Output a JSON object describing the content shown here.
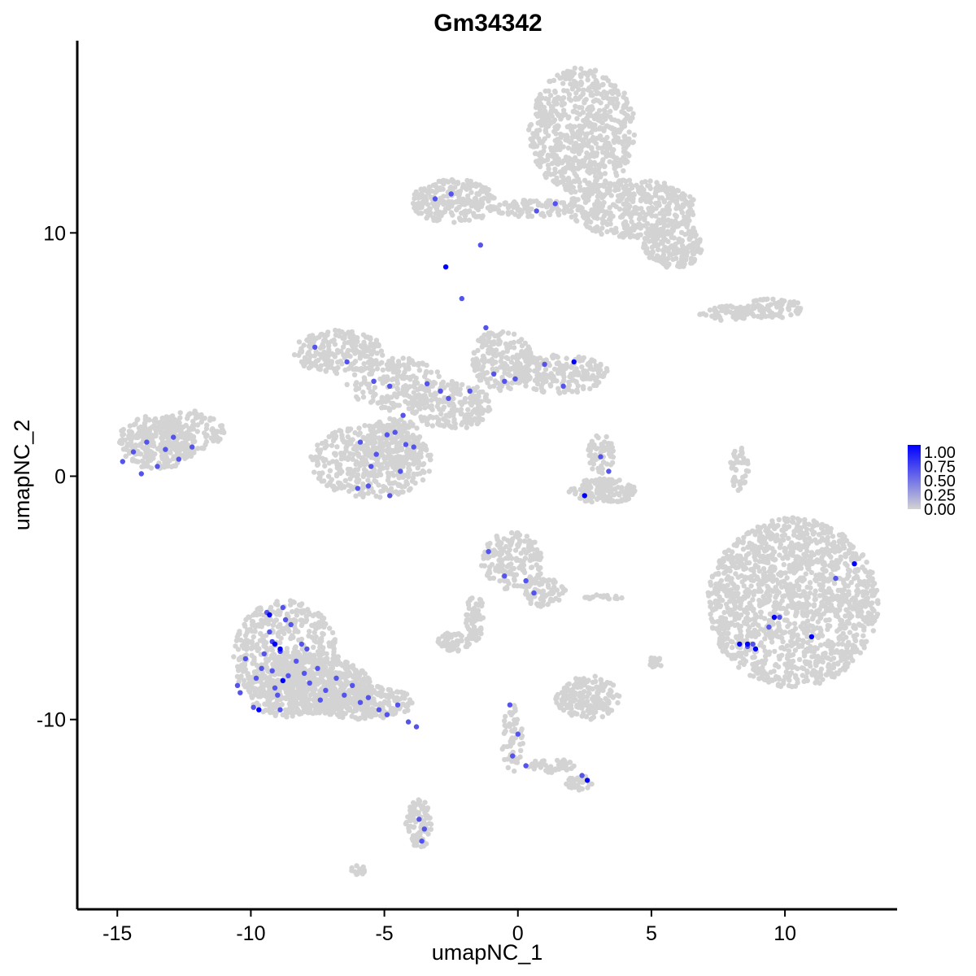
{
  "chart_data": {
    "type": "scatter",
    "title": "Gm34342",
    "xlabel": "umapNC_1",
    "ylabel": "umapNC_2",
    "xlim": [
      -16.5,
      14.2
    ],
    "ylim": [
      -17.8,
      17.9
    ],
    "xticks": [
      -15,
      -10,
      -5,
      0,
      5,
      10
    ],
    "xtick_labels": [
      "-15",
      "-10",
      "-5",
      "0",
      "5",
      "10"
    ],
    "yticks": [
      -10,
      0,
      10
    ],
    "ytick_labels": [
      "-10",
      "0",
      "10"
    ],
    "grid": false,
    "legend": {
      "placement": "right",
      "type": "colorbar",
      "low_color": "#d3d3d3",
      "high_color": "#0000ff",
      "range": [
        0,
        1
      ],
      "labels": [
        "1.00",
        "0.75",
        "0.50",
        "0.25",
        "0.00"
      ]
    },
    "background_clusters": [
      {
        "cx": 2.4,
        "cy": 14.2,
        "rx": 2.0,
        "ry": 2.6,
        "n": 700
      },
      {
        "cx": 4.3,
        "cy": 11.0,
        "rx": 2.4,
        "ry": 1.2,
        "n": 420
      },
      {
        "cx": 5.8,
        "cy": 9.5,
        "rx": 1.1,
        "ry": 1.0,
        "n": 200
      },
      {
        "cx": -2.4,
        "cy": 11.3,
        "rx": 1.6,
        "ry": 0.9,
        "n": 220
      },
      {
        "cx": 0.6,
        "cy": 11.0,
        "rx": 1.6,
        "ry": 0.35,
        "n": 90
      },
      {
        "cx": 9.5,
        "cy": 6.9,
        "rx": 1.2,
        "ry": 0.4,
        "n": 90
      },
      {
        "cx": 7.8,
        "cy": 6.7,
        "rx": 1.0,
        "ry": 0.3,
        "n": 50
      },
      {
        "cx": -6.7,
        "cy": 5.1,
        "rx": 1.7,
        "ry": 0.9,
        "n": 220
      },
      {
        "cx": -4.6,
        "cy": 3.8,
        "rx": 1.8,
        "ry": 1.1,
        "n": 200
      },
      {
        "cx": -2.5,
        "cy": 2.9,
        "rx": 1.5,
        "ry": 1.0,
        "n": 220
      },
      {
        "cx": -0.6,
        "cy": 4.8,
        "rx": 1.1,
        "ry": 1.3,
        "n": 180
      },
      {
        "cx": 1.6,
        "cy": 4.2,
        "rx": 1.8,
        "ry": 0.8,
        "n": 200
      },
      {
        "cx": -4.6,
        "cy": 1.3,
        "rx": 1.1,
        "ry": 1.1,
        "n": 150
      },
      {
        "cx": -5.5,
        "cy": 0.6,
        "rx": 2.3,
        "ry": 1.5,
        "n": 420
      },
      {
        "cx": -13.5,
        "cy": 1.4,
        "rx": 1.5,
        "ry": 1.1,
        "n": 300
      },
      {
        "cx": -12.2,
        "cy": 1.8,
        "rx": 1.2,
        "ry": 0.9,
        "n": 120
      },
      {
        "cx": 3.2,
        "cy": -0.6,
        "rx": 1.3,
        "ry": 0.5,
        "n": 140
      },
      {
        "cx": 3.1,
        "cy": 0.9,
        "rx": 0.5,
        "ry": 0.8,
        "n": 60
      },
      {
        "cx": 8.3,
        "cy": 0.3,
        "rx": 0.35,
        "ry": 0.9,
        "n": 40
      },
      {
        "cx": 10.3,
        "cy": -5.2,
        "rx": 3.2,
        "ry": 3.5,
        "n": 1500
      },
      {
        "cx": -0.2,
        "cy": -3.5,
        "rx": 1.2,
        "ry": 1.2,
        "n": 180
      },
      {
        "cx": 1.0,
        "cy": -4.8,
        "rx": 0.8,
        "ry": 0.6,
        "n": 70
      },
      {
        "cx": -1.6,
        "cy": -5.8,
        "rx": 0.35,
        "ry": 1.0,
        "n": 60
      },
      {
        "cx": -2.4,
        "cy": -6.8,
        "rx": 0.6,
        "ry": 0.4,
        "n": 60
      },
      {
        "cx": 2.6,
        "cy": -9.1,
        "rx": 1.2,
        "ry": 0.9,
        "n": 180
      },
      {
        "cx": -8.7,
        "cy": -7.5,
        "rx": 2.0,
        "ry": 2.4,
        "n": 600
      },
      {
        "cx": -7.8,
        "cy": -8.6,
        "rx": 2.3,
        "ry": 1.2,
        "n": 500
      },
      {
        "cx": -5.8,
        "cy": -9.3,
        "rx": 1.9,
        "ry": 0.7,
        "n": 260
      },
      {
        "cx": -3.7,
        "cy": -14.3,
        "rx": 0.5,
        "ry": 1.0,
        "n": 90
      },
      {
        "cx": -0.2,
        "cy": -10.8,
        "rx": 0.4,
        "ry": 1.4,
        "n": 60
      },
      {
        "cx": 1.2,
        "cy": -11.9,
        "rx": 0.9,
        "ry": 0.3,
        "n": 50
      },
      {
        "cx": 2.3,
        "cy": -12.6,
        "rx": 0.5,
        "ry": 0.3,
        "n": 40
      },
      {
        "cx": 5.1,
        "cy": -7.7,
        "rx": 0.3,
        "ry": 0.3,
        "n": 20
      },
      {
        "cx": 3.2,
        "cy": -5.0,
        "rx": 0.7,
        "ry": 0.15,
        "n": 20
      },
      {
        "cx": -6.0,
        "cy": -16.2,
        "rx": 0.3,
        "ry": 0.2,
        "n": 15
      }
    ],
    "expressing_cells": {
      "x": [
        -9.4,
        -8.8,
        -9.2,
        -8.9,
        -9.6,
        -9.8,
        -8.5,
        -10.2,
        -10.4,
        -9.1,
        -8.3,
        -8.0,
        -7.8,
        -7.5,
        -7.2,
        -6.8,
        -6.5,
        -6.2,
        -5.9,
        -5.6,
        -5.2,
        -4.9,
        -4.5,
        -4.1,
        -3.8,
        -9.9,
        -9.0,
        -8.6,
        -7.9,
        -10.5,
        -9.3,
        -8.1,
        -8.7,
        -9.5,
        -7.4,
        -8.9,
        -9.2,
        -3.7,
        -3.5,
        -3.6,
        -14.8,
        -14.4,
        -13.9,
        -13.2,
        -12.7,
        -12.2,
        -14.1,
        -13.5,
        -12.9,
        -5.9,
        -5.3,
        -4.9,
        -4.6,
        -4.2,
        -3.9,
        -5.6,
        -4.4,
        -4.8,
        -5.5,
        -6.0,
        -4.3,
        -3.4,
        -2.9,
        -2.6,
        -1.8,
        -1.2,
        -0.9,
        -0.5,
        -0.1,
        1.0,
        1.7,
        -7.6,
        -6.4,
        -5.4,
        -4.8,
        -2.1,
        -1.4,
        0.7,
        1.4,
        3.1,
        3.4,
        -1.1,
        -0.5,
        0.3,
        0.6,
        -0.3,
        0.0,
        -0.2,
        0.3,
        2.4,
        9.8,
        11.9,
        9.4,
        8.8,
        8.6,
        -2.5,
        -3.1
      ],
      "y": [
        -5.6,
        -5.4,
        -6.8,
        -7.2,
        -7.9,
        -8.3,
        -6.1,
        -7.5,
        -8.9,
        -8.7,
        -7.6,
        -8.1,
        -8.5,
        -7.9,
        -8.8,
        -8.3,
        -9.0,
        -8.6,
        -9.3,
        -9.1,
        -9.6,
        -9.8,
        -9.4,
        -10.1,
        -10.3,
        -9.5,
        -9.0,
        -8.2,
        -7.1,
        -8.6,
        -6.4,
        -6.9,
        -5.9,
        -7.3,
        -9.2,
        -9.6,
        -8.0,
        -14.1,
        -14.5,
        -15.0,
        0.6,
        1.0,
        1.4,
        1.1,
        0.7,
        1.2,
        0.1,
        0.4,
        1.6,
        1.4,
        0.9,
        1.7,
        1.8,
        1.3,
        1.2,
        -0.4,
        0.2,
        -0.8,
        0.4,
        -0.5,
        2.5,
        3.8,
        3.5,
        3.2,
        3.5,
        6.1,
        4.2,
        3.9,
        4.0,
        4.6,
        3.7,
        5.3,
        4.7,
        3.9,
        3.7,
        7.3,
        9.5,
        10.9,
        11.2,
        0.8,
        0.2,
        -3.1,
        -4.1,
        -4.3,
        -4.8,
        -9.4,
        -10.6,
        -11.5,
        -11.9,
        -12.3,
        -5.8,
        -4.2,
        -6.2,
        -6.9,
        -7.0,
        11.6,
        11.4
      ],
      "value": [
        0.6,
        0.6,
        0.7,
        0.7,
        0.6,
        0.6,
        0.6,
        0.6,
        0.6,
        0.6,
        0.6,
        0.6,
        0.6,
        0.6,
        0.6,
        0.6,
        0.6,
        0.6,
        0.6,
        0.6,
        0.6,
        0.6,
        0.6,
        0.6,
        0.6,
        0.6,
        0.6,
        0.6,
        0.6,
        0.6,
        0.6,
        0.6,
        0.6,
        0.6,
        0.6,
        0.6,
        0.6,
        0.6,
        0.6,
        0.6,
        0.6,
        0.6,
        0.6,
        0.6,
        0.6,
        0.6,
        0.6,
        0.6,
        0.6,
        0.6,
        0.6,
        0.6,
        0.6,
        0.6,
        0.6,
        0.6,
        0.6,
        0.6,
        0.6,
        0.6,
        0.6,
        0.6,
        0.6,
        0.6,
        0.6,
        0.6,
        0.6,
        0.6,
        0.6,
        0.6,
        0.6,
        0.6,
        0.6,
        0.6,
        0.6,
        0.6,
        0.6,
        0.6,
        0.6,
        0.6,
        0.6,
        0.6,
        0.6,
        0.6,
        0.6,
        0.6,
        0.6,
        0.6,
        0.6,
        0.6,
        0.6,
        0.6,
        0.6,
        0.6,
        0.6,
        0.6,
        0.6
      ]
    },
    "max_expressing_cells": {
      "x": [
        -9.3,
        -9.1,
        -8.9,
        -8.8,
        -9.7,
        -2.7,
        2.1,
        2.5,
        9.6,
        11.0,
        12.6,
        8.3,
        8.6,
        8.9,
        2.6
      ],
      "y": [
        -5.7,
        -6.9,
        -7.1,
        -8.4,
        -9.6,
        8.6,
        4.7,
        -0.8,
        -5.8,
        -6.6,
        -3.6,
        -6.9,
        -6.9,
        -7.1,
        -12.5
      ],
      "value": [
        1.0,
        1.0,
        1.0,
        1.0,
        1.0,
        1.0,
        1.0,
        1.0,
        1.0,
        1.0,
        1.0,
        1.0,
        1.0,
        1.0,
        1.0
      ]
    }
  }
}
